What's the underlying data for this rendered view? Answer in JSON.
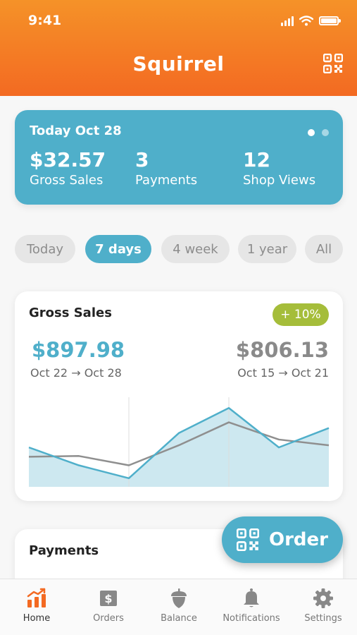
{
  "status_bar": {
    "time": "9:41"
  },
  "header": {
    "title": "Squirrel"
  },
  "summary": {
    "date": "Today Oct 28",
    "stats": [
      {
        "value": "$32.57",
        "label": "Gross Sales"
      },
      {
        "value": "3",
        "label": "Payments"
      },
      {
        "value": "12",
        "label": "Shop Views"
      }
    ]
  },
  "periods": [
    "Today",
    "7 days",
    "4 week",
    "1 year",
    "All"
  ],
  "selected_period": "7 days",
  "gross_sales": {
    "title": "Gross Sales",
    "change": "+ 10%",
    "current_total": "$897.98",
    "current_range": "Oct 22 → Oct 28",
    "previous_total": "$806.13",
    "previous_range": "Oct 15 → Oct 21"
  },
  "chart_data": {
    "type": "area",
    "x": [
      1,
      2,
      3,
      4,
      5,
      6,
      7
    ],
    "series": [
      {
        "values": [
          55,
          30,
          12,
          75,
          110,
          55,
          82
        ]
      },
      {
        "values": [
          42,
          43,
          30,
          58,
          90,
          66,
          58
        ]
      }
    ],
    "ylim": [
      0,
      125
    ],
    "colors": {
      "current": "#4fafca",
      "current_fill": "#cde8f0",
      "previous": "#8f8f8f"
    }
  },
  "payments": {
    "title": "Payments"
  },
  "order_button": {
    "label": "Order"
  },
  "tabs": [
    {
      "label": "Home",
      "icon": "chart-icon",
      "active": true
    },
    {
      "label": "Orders",
      "icon": "dollar-icon",
      "active": false
    },
    {
      "label": "Balance",
      "icon": "acorn-icon",
      "active": false
    },
    {
      "label": "Notifications",
      "icon": "bell-icon",
      "active": false
    },
    {
      "label": "Settings",
      "icon": "gear-icon",
      "active": false
    }
  ],
  "colors": {
    "header_top": "#f59228",
    "header_bottom": "#f36a22",
    "accent": "#4fafca",
    "badge": "#a5bd3a",
    "active_tab": "#f36a22"
  }
}
